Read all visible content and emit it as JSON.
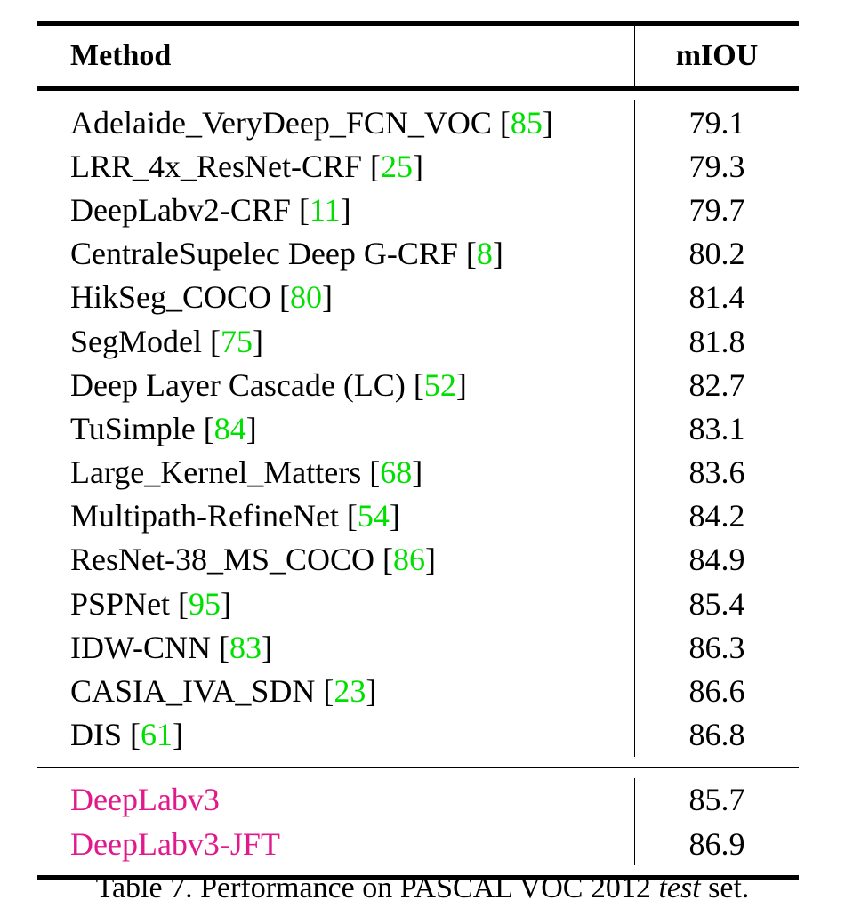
{
  "table": {
    "headers": {
      "method": "Method",
      "miou": "mIOU"
    },
    "rows": [
      {
        "name": "Adelaide_VeryDeep_FCN_VOC",
        "ref": "85",
        "miou": "79.1"
      },
      {
        "name": "LRR_4x_ResNet-CRF",
        "ref": "25",
        "miou": "79.3"
      },
      {
        "name": "DeepLabv2-CRF",
        "ref": "11",
        "miou": "79.7"
      },
      {
        "name": "CentraleSupelec Deep G-CRF",
        "ref": "8",
        "miou": "80.2"
      },
      {
        "name": "HikSeg_COCO",
        "ref": "80",
        "miou": "81.4"
      },
      {
        "name": "SegModel",
        "ref": "75",
        "miou": "81.8"
      },
      {
        "name": "Deep Layer Cascade (LC)",
        "ref": "52",
        "miou": "82.7"
      },
      {
        "name": "TuSimple",
        "ref": "84",
        "miou": "83.1"
      },
      {
        "name": "Large_Kernel_Matters",
        "ref": "68",
        "miou": "83.6"
      },
      {
        "name": "Multipath-RefineNet",
        "ref": "54",
        "miou": "84.2"
      },
      {
        "name": "ResNet-38_MS_COCO",
        "ref": "86",
        "miou": "84.9"
      },
      {
        "name": "PSPNet",
        "ref": "95",
        "miou": "85.4"
      },
      {
        "name": "IDW-CNN",
        "ref": "83",
        "miou": "86.3"
      },
      {
        "name": "CASIA_IVA_SDN",
        "ref": "23",
        "miou": "86.6"
      },
      {
        "name": "DIS",
        "ref": "61",
        "miou": "86.8"
      }
    ],
    "ours": [
      {
        "name": "DeepLabv3",
        "miou": "85.7"
      },
      {
        "name": "DeepLabv3-JFT",
        "miou": "86.9"
      }
    ]
  },
  "caption": {
    "prefix": "Table 7. Performance on PASCAL VOC 2012 ",
    "emphasis": "test",
    "suffix": " set."
  },
  "colors": {
    "citation": "#00e000",
    "ours": "#e0198c"
  }
}
